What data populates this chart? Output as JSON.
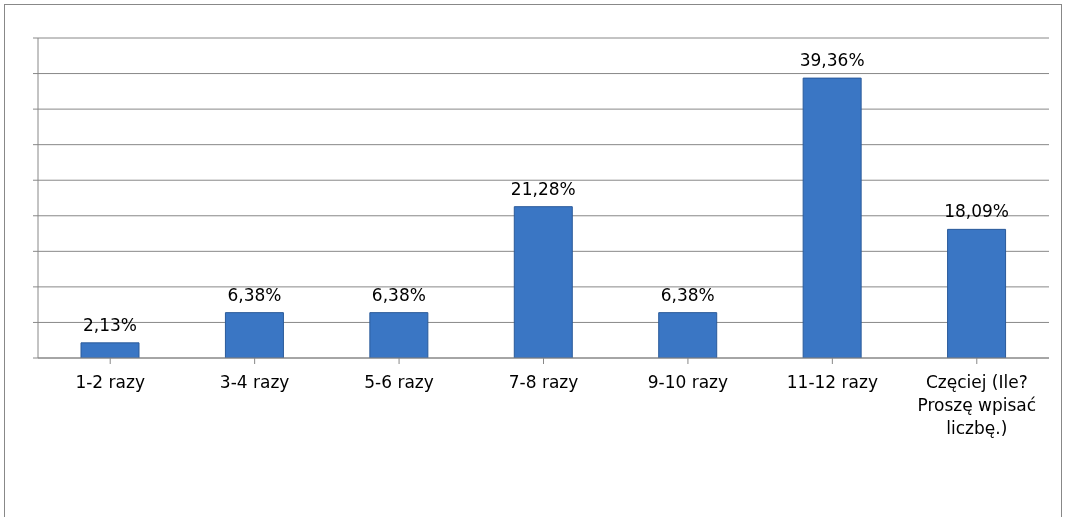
{
  "chart_data": {
    "type": "bar",
    "categories": [
      "1-2 razy",
      "3-4 razy",
      "5-6 razy",
      "7-8 razy",
      "9-10 razy",
      "11-12 razy",
      "Częciej (Ile? Proszę wpisać liczbę.)"
    ],
    "values": [
      2.13,
      6.38,
      6.38,
      21.28,
      6.38,
      39.36,
      18.09
    ],
    "value_labels": [
      "2,13%",
      "6,38%",
      "6,38%",
      "21,28%",
      "6,38%",
      "39,36%",
      "18,09%"
    ],
    "color": "#3a76c4",
    "ylim": [
      0,
      45
    ],
    "grid": "y",
    "tick_labels": "x"
  }
}
